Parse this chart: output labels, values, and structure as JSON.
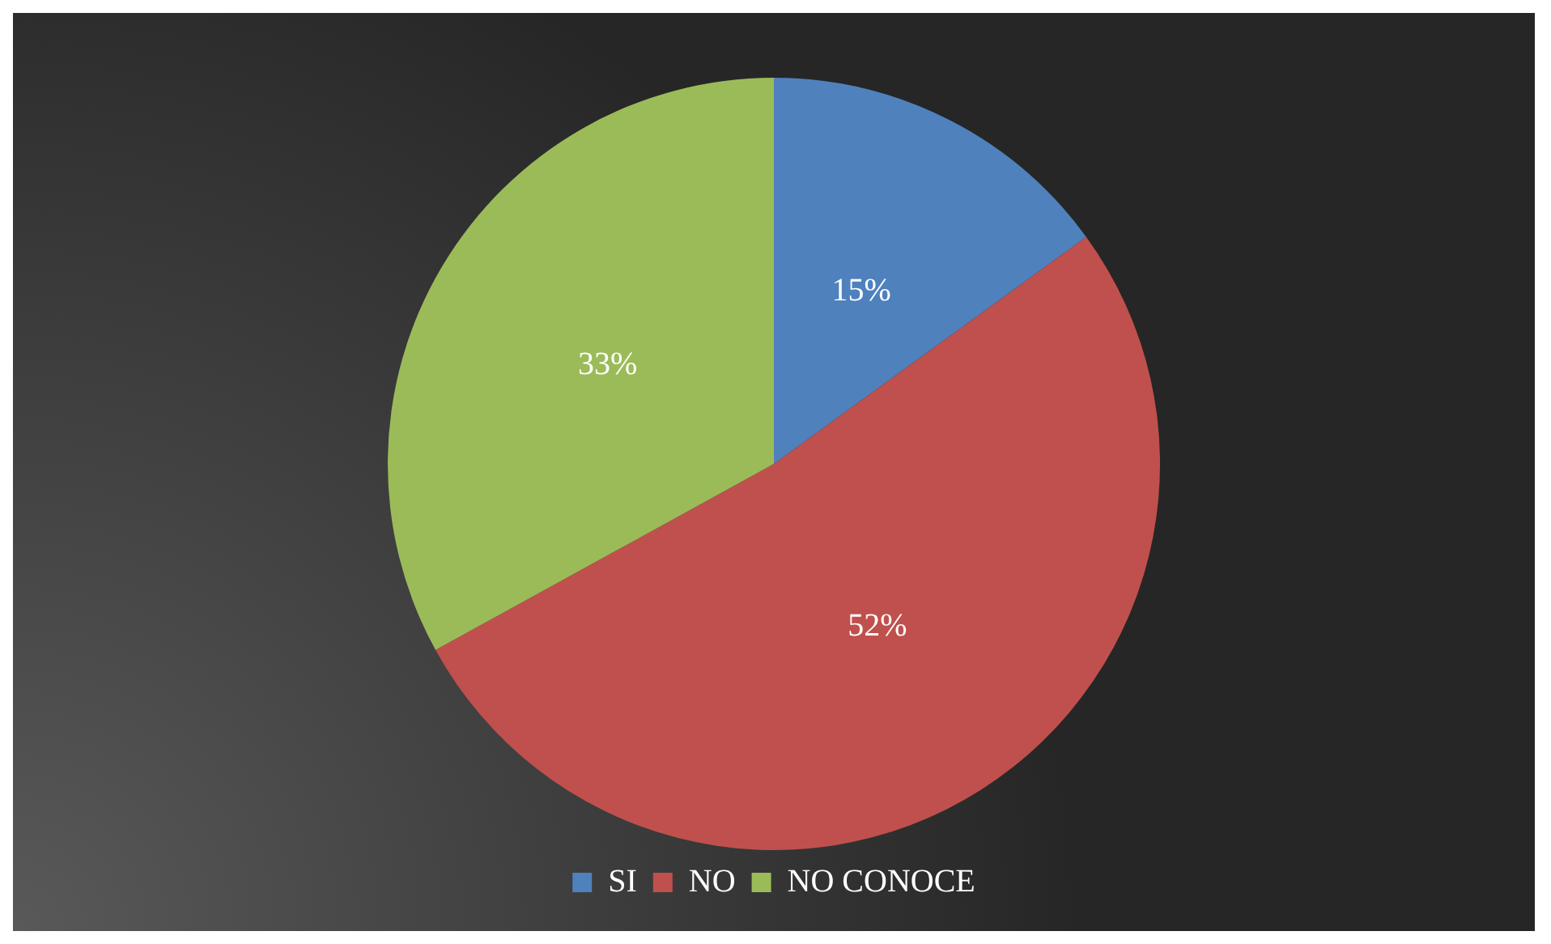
{
  "chart_data": {
    "type": "pie",
    "categories": [
      "SI",
      "NO",
      "NO CONOCE"
    ],
    "values": [
      15,
      52,
      33
    ],
    "colors": [
      "#4f81bd",
      "#c0504d",
      "#9bbb59"
    ],
    "value_labels": [
      "15%",
      "52%",
      "33%"
    ],
    "legend": "bottom"
  }
}
